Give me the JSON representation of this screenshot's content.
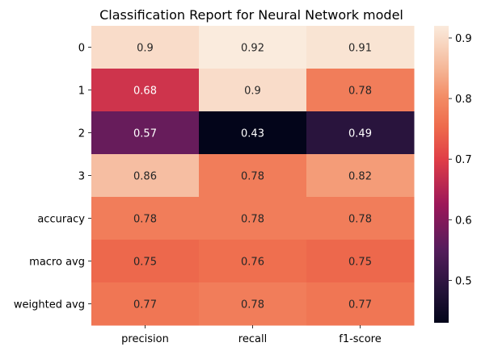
{
  "chart_data": {
    "type": "heatmap",
    "title": "Classification Report for Neural Network model",
    "rows": [
      "0",
      "1",
      "2",
      "3",
      "accuracy",
      "macro avg",
      "weighted avg"
    ],
    "columns": [
      "precision",
      "recall",
      "f1-score"
    ],
    "values": [
      [
        0.9,
        0.92,
        0.91
      ],
      [
        0.68,
        0.9,
        0.78
      ],
      [
        0.57,
        0.43,
        0.49
      ],
      [
        0.86,
        0.78,
        0.82
      ],
      [
        0.78,
        0.78,
        0.78
      ],
      [
        0.75,
        0.76,
        0.75
      ],
      [
        0.77,
        0.78,
        0.77
      ]
    ],
    "labels": [
      [
        "0.9",
        "0.92",
        "0.91"
      ],
      [
        "0.68",
        "0.9",
        "0.78"
      ],
      [
        "0.57",
        "0.43",
        "0.49"
      ],
      [
        "0.86",
        "0.78",
        "0.82"
      ],
      [
        "0.78",
        "0.78",
        "0.78"
      ],
      [
        "0.75",
        "0.76",
        "0.75"
      ],
      [
        "0.77",
        "0.78",
        "0.77"
      ]
    ],
    "colorbar": {
      "vmin": 0.43,
      "vmax": 0.92,
      "ticks": [
        0.5,
        0.6,
        0.7,
        0.8,
        0.9
      ],
      "tick_labels": [
        "0.5",
        "0.6",
        "0.7",
        "0.8",
        "0.9"
      ],
      "colormap": "rocket"
    }
  }
}
